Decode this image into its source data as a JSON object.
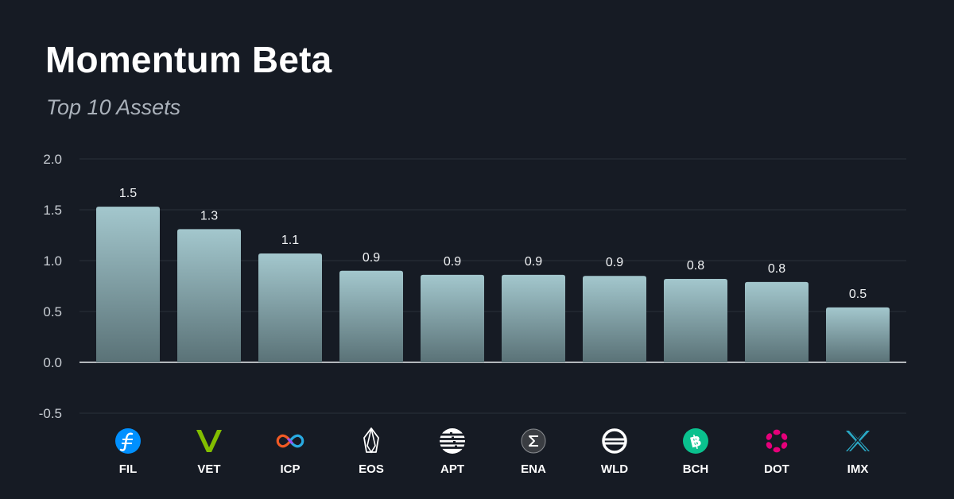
{
  "header": {
    "title": "Momentum Beta",
    "subtitle": "Top 10 Assets"
  },
  "colors": {
    "background": "#161b24",
    "bar_top": "#a3c7cd",
    "bar_bottom": "#5a7277",
    "grid": "#262c36",
    "zero_line": "#e8ecef"
  },
  "chart_data": {
    "type": "bar",
    "title": "Momentum Beta",
    "subtitle": "Top 10 Assets",
    "categories": [
      "FIL",
      "VET",
      "ICP",
      "EOS",
      "APT",
      "ENA",
      "WLD",
      "BCH",
      "DOT",
      "IMX"
    ],
    "values": [
      1.53,
      1.31,
      1.07,
      0.9,
      0.86,
      0.86,
      0.85,
      0.82,
      0.79,
      0.54
    ],
    "value_labels": [
      "1.5",
      "1.3",
      "1.1",
      "0.9",
      "0.9",
      "0.9",
      "0.9",
      "0.8",
      "0.8",
      "0.5"
    ],
    "ylim": [
      -0.5,
      2.0
    ],
    "yticks": [
      2.0,
      1.5,
      1.0,
      0.5,
      0.0,
      -0.5
    ],
    "ytick_labels": [
      "2.0",
      "1.5",
      "1.0",
      "0.5",
      "0.0",
      "-0.5"
    ],
    "grid": true,
    "legend": "none",
    "icons": [
      "filecoin-icon",
      "vechain-icon",
      "internet-computer-icon",
      "eos-icon",
      "aptos-icon",
      "ethena-icon",
      "worldcoin-icon",
      "bitcoin-cash-icon",
      "polkadot-icon",
      "immutable-x-icon"
    ]
  }
}
